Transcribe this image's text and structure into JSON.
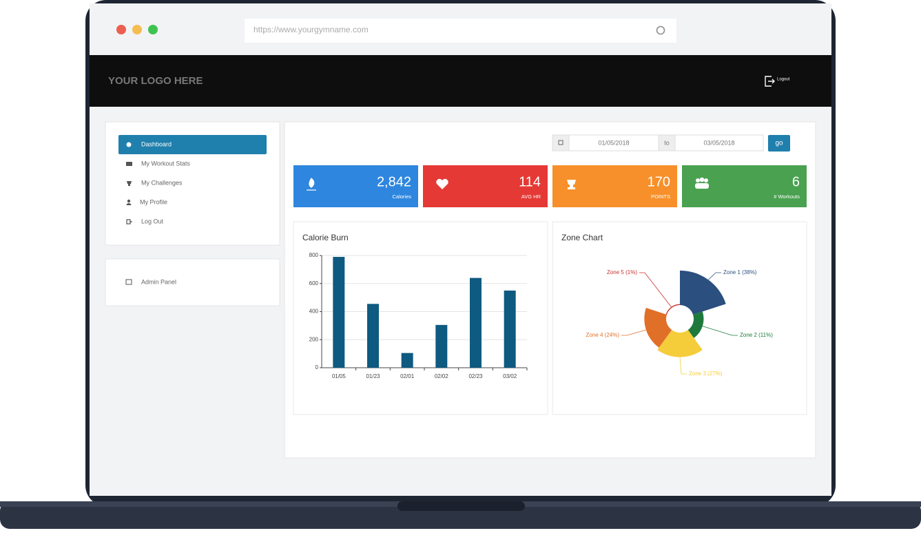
{
  "browser": {
    "url": "https://www.yourgymname.com"
  },
  "header": {
    "logo": "YOUR LOGO HERE",
    "logout": "Logout"
  },
  "sidebar": {
    "menu": [
      "Dashboard",
      "My Workout Stats",
      "My Challenges",
      "My Profile",
      "Log Out"
    ],
    "admin": "Admin Panel"
  },
  "date_filter": {
    "from": "01/05/2018",
    "separator": "to",
    "to": "03/05/2018",
    "button": "go"
  },
  "stats": [
    {
      "value": "2,842",
      "label": "Calories"
    },
    {
      "value": "114",
      "label": "AVG HR"
    },
    {
      "value": "170",
      "label": "POINTS"
    },
    {
      "value": "6",
      "label": "# Workouts"
    }
  ],
  "chart_data": [
    {
      "type": "bar",
      "title": "Calorie Burn",
      "categories": [
        "01/05",
        "01/23",
        "02/01",
        "02/02",
        "02/23",
        "03/02"
      ],
      "values": [
        790,
        455,
        105,
        305,
        640,
        550
      ],
      "color": "#0e5a80",
      "ylim": [
        0,
        800
      ],
      "yticks": [
        0,
        200,
        400,
        600,
        800
      ],
      "grid": true
    },
    {
      "type": "pie",
      "title": "Zone Chart",
      "values": [
        38,
        11,
        27,
        24,
        1
      ],
      "value_labels": [
        "Zone 1 (38%)",
        "Zone 2 (11%)",
        "Zone 3 (27%)",
        "Zone 4 (24%)",
        "Zone 5 (1%)"
      ],
      "colors": [
        "#2b4f7e",
        "#1e7a3c",
        "#f5cc3a",
        "#e07028",
        "#c8302a"
      ]
    }
  ]
}
